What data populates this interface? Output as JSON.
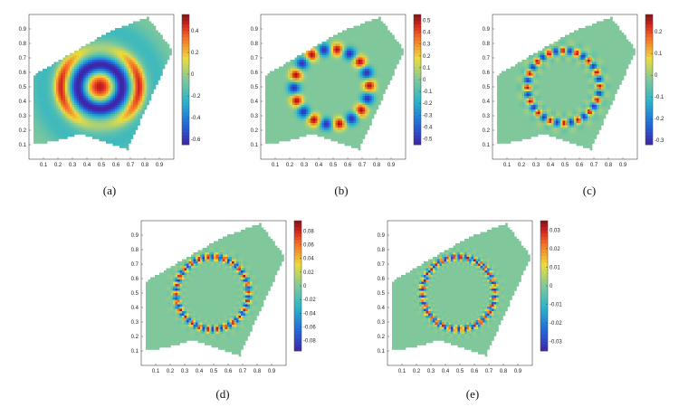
{
  "figure": {
    "panels": [
      {
        "caption": "(a)",
        "colorbar_ticks": [
          "0.4",
          "0.2",
          "0",
          "-0.2",
          "-0.4",
          "-0.6"
        ],
        "colorbar_range": [
          -0.65,
          0.55
        ],
        "pattern": "lowfreq"
      },
      {
        "caption": "(b)",
        "colorbar_ticks": [
          "0.5",
          "0.4",
          "0.3",
          "0.2",
          "0.1",
          "0",
          "-0.1",
          "-0.2",
          "-0.3",
          "-0.4",
          "-0.5"
        ],
        "colorbar_range": [
          -0.55,
          0.55
        ],
        "pattern": "ring-blobs"
      },
      {
        "caption": "(c)",
        "colorbar_ticks": [
          "0.2",
          "0.1",
          "0",
          "-0.1",
          "-0.2",
          "-0.3"
        ],
        "colorbar_range": [
          -0.32,
          0.28
        ],
        "pattern": "ring-dense"
      },
      {
        "caption": "(d)",
        "colorbar_ticks": [
          "0.08",
          "0.06",
          "0.04",
          "0.02",
          "0",
          "-0.02",
          "-0.04",
          "-0.06",
          "-0.08"
        ],
        "colorbar_range": [
          -0.095,
          0.095
        ],
        "pattern": "ring-fine"
      },
      {
        "caption": "(e)",
        "colorbar_ticks": [
          "0.03",
          "0.02",
          "0.01",
          "0",
          "-0.01",
          "-0.02",
          "-0.03"
        ],
        "colorbar_range": [
          -0.035,
          0.035
        ],
        "pattern": "ring-finest"
      }
    ],
    "x_ticks": [
      "0.1",
      "0.2",
      "0.3",
      "0.4",
      "0.5",
      "0.6",
      "0.7",
      "0.8",
      "0.9"
    ],
    "y_ticks": [
      "0.9",
      "0.8",
      "0.7",
      "0.6",
      "0.5",
      "0.4",
      "0.3",
      "0.2",
      "0.1"
    ],
    "colors": {
      "low": "#3b2a8f",
      "mid": "#7fc7a2",
      "high": "#8b1a1a"
    }
  }
}
